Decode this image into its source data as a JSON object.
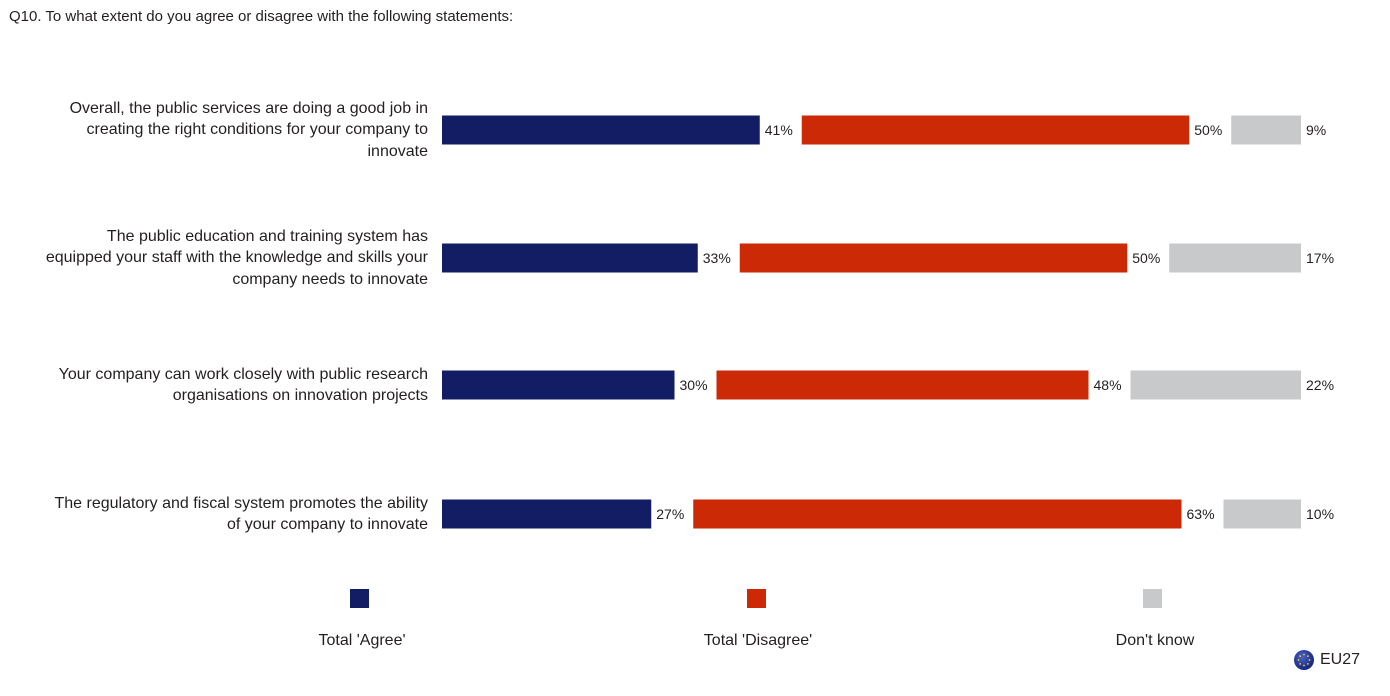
{
  "question": "Q10. To what extent do you agree or disagree with the following statements:",
  "colors": {
    "agree": "#121d63",
    "disagree": "#cc2a06",
    "dont_know": "#c8c9cb"
  },
  "chart_data": {
    "type": "bar",
    "orientation": "horizontal-stacked",
    "categories": [
      "Overall, the public services are doing a good job in creating the right conditions for your company to innovate",
      "The public education and training system has equipped your staff with the knowledge and skills your company needs to innovate",
      "Your company can work closely with public research organisations on innovation projects",
      "The regulatory and fiscal system promotes the ability of your company to innovate"
    ],
    "series": [
      {
        "name": "Total 'Agree'",
        "values": [
          41,
          33,
          30,
          27
        ]
      },
      {
        "name": "Total 'Disagree'",
        "values": [
          50,
          50,
          48,
          63
        ]
      },
      {
        "name": "Don't know",
        "values": [
          9,
          17,
          22,
          10
        ]
      }
    ],
    "value_suffix": "%",
    "legend_position": "bottom"
  },
  "row_labels": [
    [
      "Overall, the public services are doing a good job in",
      "creating the right conditions for your company to",
      "innovate"
    ],
    [
      "The public education and training system has",
      "equipped your staff with the knowledge and skills your",
      "company needs to innovate"
    ],
    [
      "Your company can work closely with public research",
      "organisations on innovation projects"
    ],
    [
      "The regulatory and fiscal system promotes the ability",
      "of your company to innovate"
    ]
  ],
  "legend": {
    "agree": "Total 'Agree'",
    "disagree": "Total 'Disagree'",
    "dont_know": "Don't know"
  },
  "badge": "EU27"
}
